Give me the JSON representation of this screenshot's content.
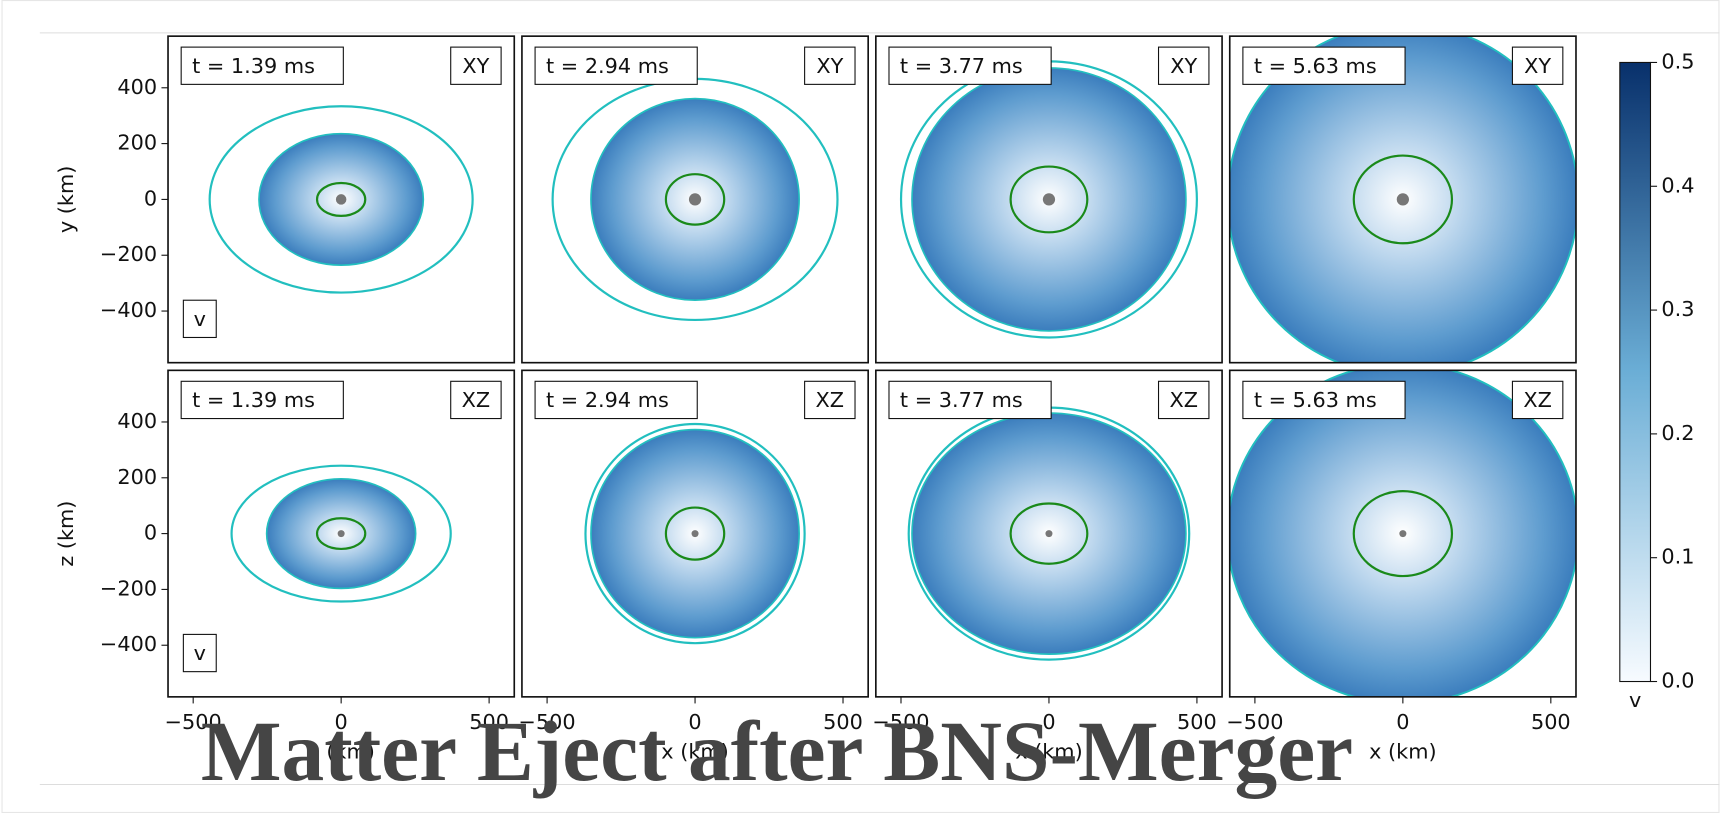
{
  "title": "Matter Eject after BNS-Merger",
  "chart_data": [
    {
      "type": "heatmap",
      "time_label": "t = 1.39 ms",
      "plane": "XY",
      "box_label": "v",
      "ylabel": "y (km)",
      "xlim": [
        -585,
        585
      ],
      "ylim": [
        -585,
        585
      ],
      "yticks": [
        {
          "value": -400,
          "label": "−400"
        },
        {
          "value": -200,
          "label": "−200"
        },
        0,
        200,
        400
      ]
    },
    {
      "type": "heatmap",
      "time_label": "t = 2.94 ms",
      "plane": "XY",
      "xlim": [
        -585,
        585
      ],
      "ylim": [
        -585,
        585
      ]
    },
    {
      "type": "heatmap",
      "time_label": "t = 3.77 ms",
      "plane": "XY",
      "xlim": [
        -585,
        585
      ],
      "ylim": [
        -585,
        585
      ]
    },
    {
      "type": "heatmap",
      "time_label": "t = 5.63 ms",
      "plane": "XY",
      "xlim": [
        -585,
        585
      ],
      "ylim": [
        -585,
        585
      ]
    },
    {
      "type": "heatmap",
      "time_label": "t = 1.39 ms",
      "plane": "XZ",
      "box_label": "v",
      "ylabel": "z (km)",
      "xlabel": "x (km)",
      "xlim": [
        -585,
        585
      ],
      "ylim": [
        -585,
        585
      ],
      "yticks": [
        {
          "value": -400,
          "label": "−400"
        },
        {
          "value": -200,
          "label": "−200"
        },
        0,
        200,
        400
      ],
      "xticks": [
        {
          "value": -500,
          "label": "−500"
        },
        0,
        500
      ]
    },
    {
      "type": "heatmap",
      "time_label": "t = 2.94 ms",
      "plane": "XZ",
      "xlabel": "x (km)",
      "xlim": [
        -585,
        585
      ],
      "ylim": [
        -585,
        585
      ],
      "xticks": [
        {
          "value": -500,
          "label": "−500"
        },
        0,
        500
      ]
    },
    {
      "type": "heatmap",
      "time_label": "t = 3.77 ms",
      "plane": "XZ",
      "xlabel": "x (km)",
      "xlim": [
        -585,
        585
      ],
      "ylim": [
        -585,
        585
      ],
      "xticks": [
        {
          "value": -500,
          "label": "−500"
        },
        0,
        500
      ]
    },
    {
      "type": "heatmap",
      "time_label": "t = 5.63 ms",
      "plane": "XZ",
      "xlabel": "x (km)",
      "xlim": [
        -585,
        585
      ],
      "ylim": [
        -585,
        585
      ],
      "xticks": [
        {
          "value": -500,
          "label": "−500"
        },
        0,
        500
      ]
    }
  ],
  "colorbar": {
    "label": "v",
    "lim": [
      0,
      0.5
    ],
    "ticks": [
      {
        "value": 0,
        "label": "0.0"
      },
      0.1,
      0.2,
      0.3,
      0.4,
      0.5
    ],
    "colors": [
      "#f7fbff",
      "#6baed6",
      "#08306b"
    ]
  }
}
